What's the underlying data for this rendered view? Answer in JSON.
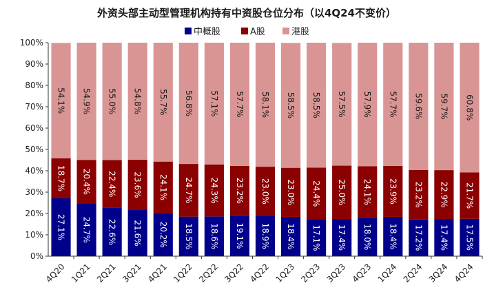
{
  "chart_data": {
    "type": "bar",
    "stacked": true,
    "title": "外资头部主动型管理机构持有中资股仓位分布（以4Q24不变价）",
    "categories": [
      "4Q20",
      "1Q21",
      "2Q21",
      "3Q21",
      "4Q21",
      "1Q22",
      "2Q22",
      "3Q22",
      "4Q22",
      "1Q23",
      "2Q23",
      "3Q23",
      "4Q23",
      "1Q24",
      "2Q24",
      "3Q24",
      "4Q24"
    ],
    "series": [
      {
        "name": "中概股",
        "color": "#00008b",
        "label_color": "#ffffff",
        "values": [
          27.1,
          24.7,
          22.6,
          21.6,
          20.2,
          18.5,
          18.6,
          19.1,
          18.9,
          18.4,
          17.1,
          17.4,
          18.0,
          18.4,
          17.2,
          17.4,
          17.5
        ],
        "labels": [
          "27.1%",
          "24.7%",
          "22.6%",
          "21.6%",
          "20.2%",
          "18.5%",
          "18.6%",
          "19.1%",
          "18.9%",
          "18.4%",
          "17.1%",
          "17.4%",
          "18.0%",
          "18.4%",
          "17.2%",
          "17.4%",
          "17.5%"
        ]
      },
      {
        "name": "A股",
        "color": "#8b0000",
        "label_color": "#ffffff",
        "values": [
          18.7,
          20.4,
          22.4,
          23.6,
          24.1,
          24.7,
          24.3,
          23.2,
          23.0,
          23.0,
          24.4,
          25.0,
          24.1,
          23.9,
          23.2,
          22.9,
          21.7
        ],
        "labels": [
          "18.7%",
          "20.4%",
          "22.4%",
          "23.6%",
          "24.1%",
          "24.7%",
          "24.3%",
          "23.2%",
          "23.0%",
          "23.0%",
          "24.4%",
          "25.0%",
          "24.1%",
          "23.9%",
          "23.2%",
          "22.9%",
          "21.7%"
        ]
      },
      {
        "name": "港股",
        "color": "#d99594",
        "label_color": "#1a1a1a",
        "values": [
          54.1,
          54.9,
          55.0,
          54.8,
          55.7,
          56.8,
          57.1,
          57.7,
          58.1,
          58.5,
          58.5,
          57.5,
          57.9,
          57.7,
          59.6,
          59.7,
          60.8
        ],
        "labels": [
          "54.1%",
          "54.9%",
          "55.0%",
          "54.8%",
          "55.7%",
          "56.8%",
          "57.1%",
          "57.7%",
          "58.1%",
          "58.5%",
          "58.5%",
          "57.5%",
          "57.9%",
          "57.7%",
          "59.6%",
          "59.7%",
          "60.8%"
        ]
      }
    ],
    "ylim": [
      0,
      100
    ],
    "yticks": [
      "0%",
      "10%",
      "20%",
      "30%",
      "40%",
      "50%",
      "60%",
      "70%",
      "80%",
      "90%",
      "100%"
    ],
    "legend_position": "top-center",
    "grid": false
  }
}
